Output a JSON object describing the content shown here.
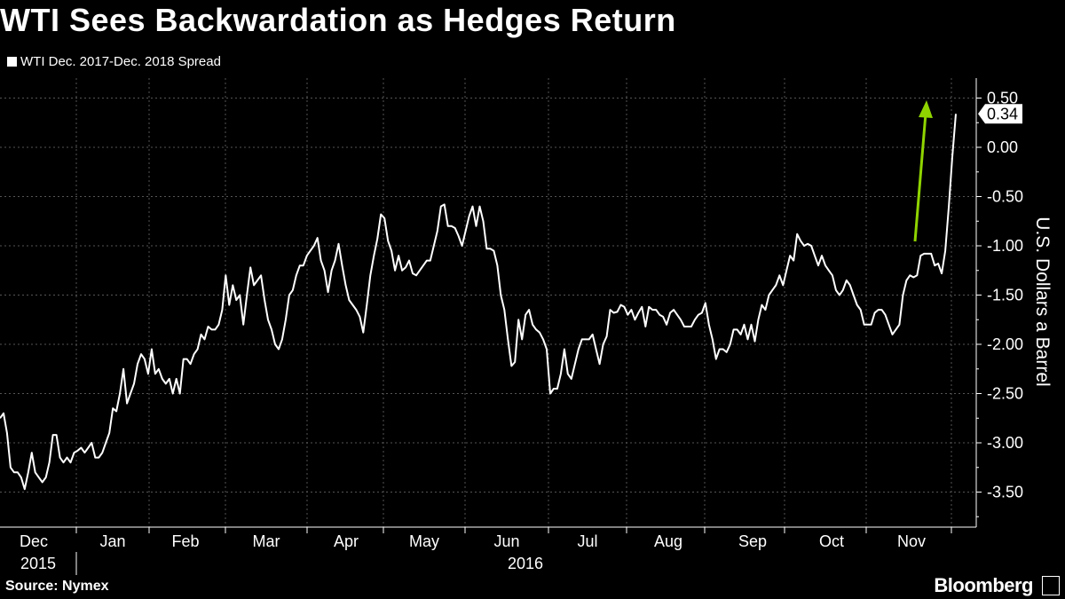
{
  "chart_data": {
    "type": "line",
    "title": "WTI Sees Backwardation as Hedges Return",
    "ylabel": "U.S. Dollars a Barrel",
    "source": "Source: Nymex",
    "brand": "Bloomberg",
    "ylim": [
      -3.75,
      0.6
    ],
    "y_ticks": [
      0.5,
      0.0,
      -0.5,
      -1.0,
      -1.5,
      -2.0,
      -2.5,
      -3.0,
      -3.5
    ],
    "y_tick_labels": [
      "0.50",
      "0.00",
      "-0.50",
      "-1.00",
      "-1.50",
      "-2.00",
      "-2.50",
      "-3.00",
      "-3.50"
    ],
    "x_month_labels": [
      "Dec",
      "Jan",
      "Feb",
      "Mar",
      "Apr",
      "May",
      "Jun",
      "Jul",
      "Aug",
      "Sep",
      "Oct",
      "Nov"
    ],
    "x_year_labels": [
      "2015",
      "2016"
    ],
    "last_value_label": "0.34",
    "grid": true,
    "legend_position": "top-left",
    "colors": {
      "background": "#000000",
      "line": "#ffffff",
      "grid": "#555555",
      "arrow": "#8fd400"
    },
    "annotation_arrow": "green up arrow near end of series",
    "series": [
      {
        "name": "WTI Dec. 2017-Dec. 2018 Spread",
        "values": [
          -2.75,
          -2.7,
          -2.9,
          -3.25,
          -3.3,
          -3.3,
          -3.35,
          -3.47,
          -3.3,
          -3.1,
          -3.3,
          -3.35,
          -3.4,
          -3.35,
          -3.2,
          -2.92,
          -2.92,
          -3.15,
          -3.2,
          -3.15,
          -3.2,
          -3.1,
          -3.08,
          -3.05,
          -3.1,
          -3.05,
          -3.0,
          -3.15,
          -3.15,
          -3.1,
          -3.0,
          -2.9,
          -2.65,
          -2.68,
          -2.5,
          -2.25,
          -2.6,
          -2.5,
          -2.4,
          -2.2,
          -2.1,
          -2.15,
          -2.3,
          -2.05,
          -2.3,
          -2.25,
          -2.35,
          -2.4,
          -2.35,
          -2.5,
          -2.35,
          -2.5,
          -2.15,
          -2.15,
          -2.2,
          -2.1,
          -2.05,
          -1.9,
          -1.95,
          -1.82,
          -1.85,
          -1.85,
          -1.8,
          -1.65,
          -1.3,
          -1.6,
          -1.4,
          -1.55,
          -1.5,
          -1.8,
          -1.5,
          -1.22,
          -1.4,
          -1.35,
          -1.3,
          -1.55,
          -1.75,
          -1.85,
          -2.0,
          -2.05,
          -1.95,
          -1.75,
          -1.5,
          -1.45,
          -1.3,
          -1.2,
          -1.2,
          -1.1,
          -1.05,
          -1.0,
          -0.92,
          -1.15,
          -1.25,
          -1.47,
          -1.25,
          -1.15,
          -0.98,
          -1.2,
          -1.4,
          -1.55,
          -1.6,
          -1.65,
          -1.72,
          -1.88,
          -1.6,
          -1.3,
          -1.1,
          -0.93,
          -0.68,
          -0.72,
          -0.95,
          -1.05,
          -1.25,
          -1.1,
          -1.25,
          -1.22,
          -1.15,
          -1.28,
          -1.3,
          -1.25,
          -1.2,
          -1.15,
          -1.15,
          -1.0,
          -0.85,
          -0.6,
          -0.58,
          -0.8,
          -0.8,
          -0.82,
          -0.9,
          -1.0,
          -0.85,
          -0.7,
          -0.6,
          -0.8,
          -0.6,
          -0.75,
          -1.03,
          -1.03,
          -1.05,
          -1.2,
          -1.5,
          -1.65,
          -1.95,
          -2.22,
          -2.18,
          -1.75,
          -1.95,
          -1.7,
          -1.65,
          -1.8,
          -1.85,
          -1.88,
          -1.95,
          -2.05,
          -2.5,
          -2.45,
          -2.45,
          -2.3,
          -2.05,
          -2.3,
          -2.35,
          -2.2,
          -2.05,
          -1.95,
          -1.95,
          -1.95,
          -1.9,
          -2.05,
          -2.2,
          -2.0,
          -1.92,
          -1.65,
          -1.68,
          -1.67,
          -1.6,
          -1.62,
          -1.7,
          -1.65,
          -1.75,
          -1.68,
          -1.62,
          -1.82,
          -1.62,
          -1.65,
          -1.65,
          -1.7,
          -1.72,
          -1.8,
          -1.68,
          -1.65,
          -1.7,
          -1.75,
          -1.82,
          -1.82,
          -1.82,
          -1.75,
          -1.7,
          -1.68,
          -1.58,
          -1.8,
          -1.95,
          -2.15,
          -2.05,
          -2.05,
          -2.08,
          -2.0,
          -1.85,
          -1.85,
          -1.9,
          -1.8,
          -1.95,
          -1.8,
          -1.97,
          -1.75,
          -1.6,
          -1.65,
          -1.5,
          -1.45,
          -1.4,
          -1.3,
          -1.4,
          -1.25,
          -1.1,
          -1.15,
          -0.88,
          -0.95,
          -1.0,
          -0.98,
          -1.0,
          -1.1,
          -1.2,
          -1.1,
          -1.2,
          -1.25,
          -1.3,
          -1.45,
          -1.5,
          -1.45,
          -1.35,
          -1.4,
          -1.5,
          -1.6,
          -1.65,
          -1.8,
          -1.8,
          -1.8,
          -1.68,
          -1.65,
          -1.65,
          -1.7,
          -1.8,
          -1.9,
          -1.85,
          -1.8,
          -1.5,
          -1.35,
          -1.3,
          -1.32,
          -1.3,
          -1.1,
          -1.08,
          -1.08,
          -1.08,
          -1.2,
          -1.18,
          -1.28,
          -1.05,
          -0.6,
          -0.1,
          0.34
        ]
      }
    ]
  }
}
